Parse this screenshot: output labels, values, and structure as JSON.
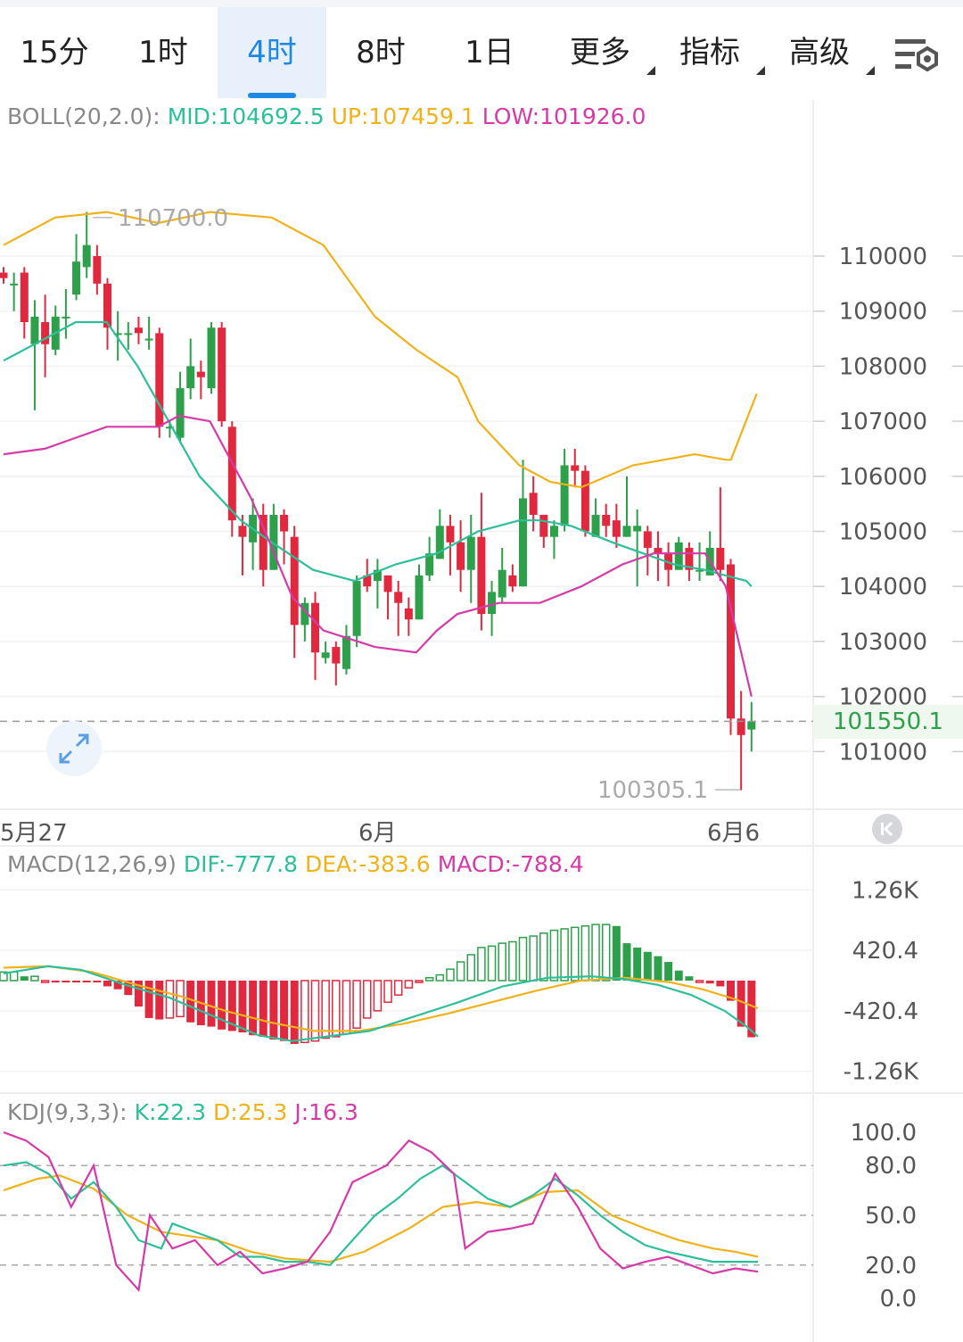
{
  "tabs": [
    {
      "label": "15分",
      "active": false
    },
    {
      "label": "1时",
      "active": false
    },
    {
      "label": "4时",
      "active": true
    },
    {
      "label": "8时",
      "active": false
    },
    {
      "label": "1日",
      "active": false
    },
    {
      "label": "更多",
      "active": false,
      "dropdown": true
    },
    {
      "label": "指标",
      "active": false,
      "dropdown": true
    },
    {
      "label": "高级",
      "active": false,
      "dropdown": true
    }
  ],
  "icons": {
    "settings": "chart-settings-icon",
    "expand": "expand-arrows-icon",
    "back": "scroll-to-latest-icon"
  },
  "colors": {
    "up": "#2ea04c",
    "down": "#e0283f",
    "mid": "#2dbf9a",
    "upper": "#f0b21a",
    "lower": "#d63aa8",
    "accent": "#1e88e5"
  },
  "boll": {
    "label": "BOLL(20,2.0):",
    "mid": "MID:104692.5",
    "up": "UP:107459.1",
    "low": "LOW:101926.0"
  },
  "macd": {
    "label": "MACD(12,26,9)",
    "dif": "DIF:-777.8",
    "dea": "DEA:-383.6",
    "macd": "MACD:-788.4"
  },
  "kdj": {
    "label": "KDJ(9,3,3):",
    "k": "K:22.3",
    "d": "D:25.3",
    "j": "J:16.3"
  },
  "current_price": "101550.1",
  "high_mark": "110700.0",
  "low_mark": "100305.1",
  "chart_data": [
    {
      "type": "candlestick",
      "title": "BOLL(20,2.0)",
      "x_labels": [
        "5月27",
        "6月",
        "6月6"
      ],
      "yticks": [
        110000,
        109000,
        108000,
        107000,
        106000,
        105000,
        104000,
        103000,
        102000,
        101000
      ],
      "ylim": [
        100000,
        111600
      ],
      "candles": [
        [
          109700,
          109600,
          109800,
          109500
        ],
        [
          109500,
          109500,
          109700,
          109000
        ],
        [
          109700,
          108800,
          109800,
          108500
        ],
        [
          108400,
          108900,
          109200,
          107200
        ],
        [
          108800,
          108400,
          109300,
          107800
        ],
        [
          108300,
          108900,
          109100,
          108200
        ],
        [
          108900,
          108900,
          109400,
          108500
        ],
        [
          109300,
          109900,
          110400,
          109200
        ],
        [
          109800,
          110200,
          110800,
          109600
        ],
        [
          110000,
          109500,
          110200,
          109300
        ],
        [
          109500,
          108700,
          109600,
          108300
        ],
        [
          108600,
          108600,
          109000,
          108100
        ],
        [
          108600,
          108600,
          108800,
          108300
        ],
        [
          108700,
          108600,
          108900,
          108400
        ],
        [
          108500,
          108500,
          108900,
          108300
        ],
        [
          108600,
          106900,
          108700,
          106700
        ],
        [
          106900,
          106900,
          107000,
          106700
        ],
        [
          106700,
          107600,
          107900,
          106600
        ],
        [
          107600,
          108000,
          108500,
          107400
        ],
        [
          107900,
          107800,
          108100,
          107400
        ],
        [
          107600,
          108700,
          108800,
          107500
        ],
        [
          108700,
          107000,
          108800,
          106900
        ],
        [
          106900,
          105200,
          107000,
          104900
        ],
        [
          105100,
          104900,
          105300,
          104200
        ],
        [
          104800,
          105300,
          105600,
          104300
        ],
        [
          105300,
          104300,
          105500,
          104000
        ],
        [
          104300,
          105300,
          105500,
          104300
        ],
        [
          105300,
          105000,
          105400,
          104400
        ],
        [
          104900,
          103300,
          105100,
          102700
        ],
        [
          103300,
          103700,
          103800,
          103000
        ],
        [
          103700,
          102800,
          103900,
          102300
        ],
        [
          102700,
          102800,
          103000,
          102600
        ],
        [
          102900,
          102600,
          103000,
          102200
        ],
        [
          102500,
          103100,
          103300,
          102400
        ],
        [
          103100,
          104100,
          104200,
          102900
        ],
        [
          104200,
          104000,
          104500,
          103900
        ],
        [
          104100,
          104300,
          104500,
          103600
        ],
        [
          104200,
          103900,
          104200,
          103400
        ],
        [
          103900,
          103700,
          104100,
          103100
        ],
        [
          103600,
          103400,
          103800,
          103100
        ],
        [
          103400,
          104200,
          104400,
          103400
        ],
        [
          104200,
          104600,
          104900,
          104100
        ],
        [
          104500,
          105100,
          105400,
          104500
        ],
        [
          105100,
          104800,
          105300,
          104200
        ],
        [
          104800,
          104300,
          105200,
          103900
        ],
        [
          104300,
          104900,
          105300,
          103700
        ],
        [
          104900,
          103500,
          105700,
          103200
        ],
        [
          103500,
          103900,
          104100,
          103100
        ],
        [
          103800,
          104300,
          104700,
          103700
        ],
        [
          104200,
          104000,
          104400,
          103900
        ],
        [
          104000,
          105600,
          106300,
          104000
        ],
        [
          105700,
          105300,
          106000,
          105000
        ],
        [
          105300,
          104900,
          105100,
          104700
        ],
        [
          104900,
          105100,
          105200,
          104500
        ],
        [
          105100,
          106200,
          106500,
          105000
        ],
        [
          106200,
          106100,
          106500,
          105800
        ],
        [
          106100,
          105000,
          106200,
          104900
        ],
        [
          104900,
          105300,
          105600,
          104900
        ],
        [
          105300,
          105100,
          105500,
          104900
        ],
        [
          105200,
          104900,
          105500,
          104700
        ],
        [
          104900,
          105100,
          106000,
          104900
        ],
        [
          105000,
          105100,
          105400,
          104000
        ],
        [
          105000,
          104700,
          105100,
          104200
        ],
        [
          104700,
          104600,
          105000,
          104100
        ],
        [
          104600,
          104300,
          104800,
          104000
        ],
        [
          104300,
          104800,
          104900,
          104300
        ],
        [
          104700,
          104300,
          104800,
          104100
        ],
        [
          104300,
          104300,
          104800,
          104100
        ],
        [
          104200,
          104700,
          105000,
          104200
        ],
        [
          104700,
          104300,
          105800,
          104100
        ],
        [
          104400,
          101600,
          104500,
          101300
        ],
        [
          101600,
          101300,
          102100,
          100300
        ],
        [
          101400,
          101550,
          101900,
          101000
        ]
      ],
      "mid": [
        [
          0,
          108100
        ],
        [
          8,
          108500
        ],
        [
          14,
          108800
        ],
        [
          20,
          108800
        ],
        [
          26,
          108000
        ],
        [
          32,
          107000
        ],
        [
          38,
          106000
        ],
        [
          46,
          105200
        ],
        [
          52,
          104800
        ],
        [
          60,
          104300
        ],
        [
          68,
          104100
        ],
        [
          76,
          104400
        ],
        [
          84,
          104600
        ],
        [
          92,
          105000
        ],
        [
          100,
          105200
        ],
        [
          104,
          105200
        ],
        [
          110,
          105100
        ],
        [
          118,
          104800
        ],
        [
          124,
          104600
        ],
        [
          130,
          104400
        ],
        [
          136,
          104300
        ],
        [
          140,
          104200
        ],
        [
          144,
          104100
        ],
        [
          145,
          104000
        ]
      ],
      "upper": [
        [
          0,
          110200
        ],
        [
          10,
          110700
        ],
        [
          20,
          110800
        ],
        [
          30,
          110600
        ],
        [
          40,
          110800
        ],
        [
          52,
          110700
        ],
        [
          62,
          110200
        ],
        [
          72,
          108900
        ],
        [
          80,
          108300
        ],
        [
          88,
          107800
        ],
        [
          92,
          107000
        ],
        [
          100,
          106200
        ],
        [
          106,
          105900
        ],
        [
          112,
          105800
        ],
        [
          122,
          106200
        ],
        [
          134,
          106400
        ],
        [
          140,
          106300
        ],
        [
          141,
          106300
        ],
        [
          146,
          107500
        ]
      ],
      "lower": [
        [
          0,
          106400
        ],
        [
          8,
          106500
        ],
        [
          14,
          106700
        ],
        [
          20,
          106900
        ],
        [
          30,
          106900
        ],
        [
          34,
          107100
        ],
        [
          40,
          107000
        ],
        [
          48,
          105600
        ],
        [
          56,
          103800
        ],
        [
          62,
          103200
        ],
        [
          72,
          102900
        ],
        [
          80,
          102800
        ],
        [
          84,
          103200
        ],
        [
          88,
          103500
        ],
        [
          96,
          103700
        ],
        [
          104,
          103700
        ],
        [
          112,
          104000
        ],
        [
          120,
          104400
        ],
        [
          126,
          104600
        ],
        [
          130,
          104600
        ],
        [
          136,
          104600
        ],
        [
          140,
          104000
        ],
        [
          145,
          102000
        ]
      ]
    },
    {
      "type": "bar",
      "title": "MACD(12,26,9)",
      "yticks": [
        "1.26K",
        "420.4",
        "-420.4",
        "-1.26K"
      ],
      "ylim": [
        -1400,
        1400
      ],
      "histogram": [
        120,
        120,
        60,
        60,
        -20,
        -20,
        -20,
        -20,
        -20,
        -20,
        -80,
        -120,
        -200,
        -360,
        -520,
        -540,
        -520,
        -500,
        -580,
        -620,
        -640,
        -680,
        -700,
        -720,
        -760,
        -780,
        -820,
        -840,
        -880,
        -860,
        -840,
        -800,
        -780,
        -740,
        -660,
        -520,
        -420,
        -300,
        -200,
        -100,
        -20,
        40,
        80,
        160,
        260,
        360,
        460,
        480,
        520,
        540,
        600,
        620,
        660,
        700,
        720,
        740,
        760,
        780,
        780,
        760,
        520,
        460,
        400,
        340,
        260,
        140,
        60,
        -20,
        -40,
        -80,
        -280,
        -640,
        -788
      ],
      "dif": [
        [
          0,
          100
        ],
        [
          8,
          200
        ],
        [
          14,
          150
        ],
        [
          22,
          -60
        ],
        [
          30,
          -240
        ],
        [
          38,
          -500
        ],
        [
          46,
          -760
        ],
        [
          52,
          -840
        ],
        [
          58,
          -780
        ],
        [
          66,
          -700
        ],
        [
          74,
          -500
        ],
        [
          82,
          -300
        ],
        [
          90,
          -80
        ],
        [
          98,
          40
        ],
        [
          106,
          60
        ],
        [
          112,
          20
        ],
        [
          118,
          -60
        ],
        [
          124,
          -200
        ],
        [
          130,
          -420
        ],
        [
          134,
          -640
        ],
        [
          136,
          -778
        ]
      ],
      "dea": [
        [
          0,
          180
        ],
        [
          8,
          200
        ],
        [
          16,
          120
        ],
        [
          24,
          -60
        ],
        [
          32,
          -220
        ],
        [
          40,
          -420
        ],
        [
          48,
          -580
        ],
        [
          56,
          -700
        ],
        [
          64,
          -700
        ],
        [
          72,
          -600
        ],
        [
          80,
          -460
        ],
        [
          88,
          -300
        ],
        [
          96,
          -140
        ],
        [
          104,
          0
        ],
        [
          112,
          40
        ],
        [
          120,
          -20
        ],
        [
          126,
          -120
        ],
        [
          132,
          -260
        ],
        [
          136,
          -384
        ]
      ]
    },
    {
      "type": "line",
      "title": "KDJ(9,3,3)",
      "yticks": [
        100.0,
        80.0,
        50.0,
        20.0,
        0.0
      ],
      "ylim": [
        -8,
        110
      ],
      "k": [
        [
          0,
          80
        ],
        [
          4,
          82
        ],
        [
          8,
          75
        ],
        [
          12,
          60
        ],
        [
          16,
          70
        ],
        [
          20,
          55
        ],
        [
          24,
          35
        ],
        [
          28,
          30
        ],
        [
          30,
          45
        ],
        [
          34,
          40
        ],
        [
          38,
          35
        ],
        [
          42,
          25
        ],
        [
          46,
          25
        ],
        [
          50,
          22
        ],
        [
          54,
          22
        ],
        [
          58,
          20
        ],
        [
          62,
          35
        ],
        [
          66,
          50
        ],
        [
          70,
          60
        ],
        [
          74,
          72
        ],
        [
          78,
          80
        ],
        [
          82,
          70
        ],
        [
          86,
          60
        ],
        [
          90,
          55
        ],
        [
          94,
          62
        ],
        [
          98,
          72
        ],
        [
          102,
          62
        ],
        [
          106,
          50
        ],
        [
          110,
          40
        ],
        [
          114,
          32
        ],
        [
          118,
          28
        ],
        [
          122,
          25
        ],
        [
          126,
          22
        ],
        [
          130,
          22
        ],
        [
          134,
          22
        ]
      ],
      "d": [
        [
          0,
          65
        ],
        [
          6,
          72
        ],
        [
          10,
          74
        ],
        [
          16,
          66
        ],
        [
          22,
          50
        ],
        [
          28,
          40
        ],
        [
          32,
          38
        ],
        [
          38,
          35
        ],
        [
          44,
          28
        ],
        [
          50,
          24
        ],
        [
          58,
          22
        ],
        [
          64,
          28
        ],
        [
          72,
          42
        ],
        [
          78,
          55
        ],
        [
          84,
          58
        ],
        [
          90,
          55
        ],
        [
          96,
          64
        ],
        [
          102,
          65
        ],
        [
          108,
          50
        ],
        [
          114,
          42
        ],
        [
          120,
          35
        ],
        [
          126,
          30
        ],
        [
          130,
          28
        ],
        [
          134,
          25
        ]
      ],
      "j": [
        [
          0,
          100
        ],
        [
          4,
          95
        ],
        [
          8,
          85
        ],
        [
          12,
          55
        ],
        [
          16,
          80
        ],
        [
          20,
          20
        ],
        [
          24,
          5
        ],
        [
          26,
          50
        ],
        [
          30,
          30
        ],
        [
          34,
          35
        ],
        [
          38,
          20
        ],
        [
          42,
          28
        ],
        [
          46,
          15
        ],
        [
          50,
          18
        ],
        [
          54,
          22
        ],
        [
          58,
          40
        ],
        [
          62,
          70
        ],
        [
          68,
          80
        ],
        [
          72,
          95
        ],
        [
          76,
          88
        ],
        [
          80,
          75
        ],
        [
          82,
          30
        ],
        [
          86,
          40
        ],
        [
          90,
          42
        ],
        [
          94,
          45
        ],
        [
          98,
          75
        ],
        [
          102,
          55
        ],
        [
          106,
          30
        ],
        [
          110,
          18
        ],
        [
          114,
          22
        ],
        [
          118,
          25
        ],
        [
          122,
          20
        ],
        [
          126,
          15
        ],
        [
          130,
          18
        ],
        [
          134,
          16
        ]
      ]
    }
  ]
}
